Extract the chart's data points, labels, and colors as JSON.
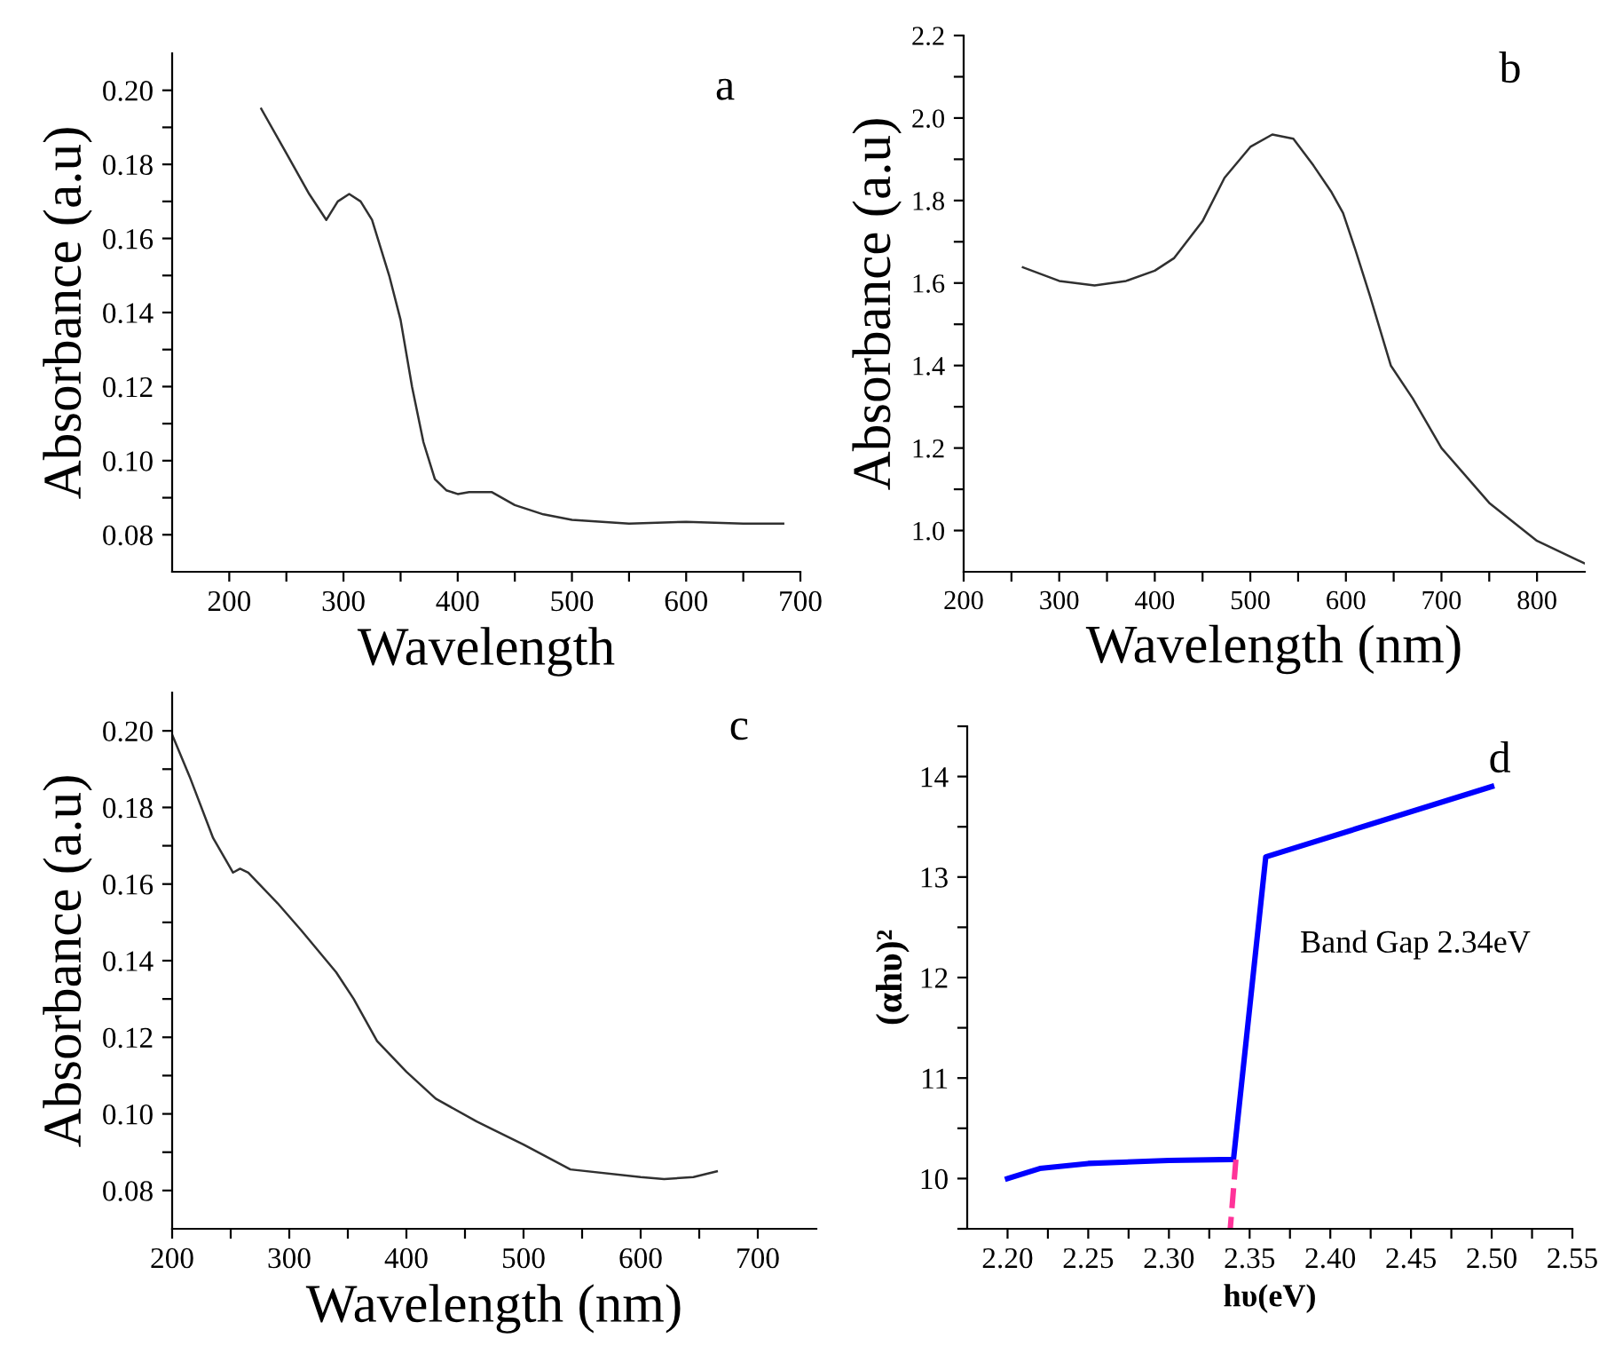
{
  "chart_data": [
    {
      "type": "line",
      "title": "a",
      "xlabel": "Wavelength",
      "ylabel": "Absorbance (a.u)",
      "xlim": [
        150,
        700
      ],
      "ylim": [
        0.07,
        0.21
      ],
      "grid": false,
      "legend": false,
      "xticks": [
        200,
        {
          "value": 250,
          "label": null
        },
        300,
        {
          "value": 350,
          "label": null
        },
        400,
        {
          "value": 450,
          "label": null
        },
        500,
        {
          "value": 550,
          "label": null
        },
        600,
        {
          "value": 650,
          "label": null
        },
        700
      ],
      "yticks": [
        {
          "value": 0.08,
          "label": "0.08"
        },
        {
          "value": 0.09,
          "label": null
        },
        {
          "value": 0.1,
          "label": "0.10"
        },
        {
          "value": 0.11,
          "label": null
        },
        {
          "value": 0.12,
          "label": "0.12"
        },
        {
          "value": 0.13,
          "label": null
        },
        {
          "value": 0.14,
          "label": "0.14"
        },
        {
          "value": 0.15,
          "label": null
        },
        {
          "value": 0.16,
          "label": "0.16"
        },
        {
          "value": 0.17,
          "label": null
        },
        {
          "value": 0.18,
          "label": "0.18"
        },
        {
          "value": 0.19,
          "label": null
        },
        {
          "value": 0.2,
          "label": "0.20"
        }
      ],
      "series": [
        {
          "color": "#303030",
          "x": [
            228,
            250,
            270,
            285,
            295,
            305,
            315,
            325,
            340,
            350,
            360,
            370,
            380,
            390,
            400,
            410,
            430,
            450,
            475,
            500,
            550,
            600,
            650,
            685
          ],
          "values": [
            0.195,
            0.183,
            0.172,
            0.165,
            0.17,
            0.172,
            0.17,
            0.165,
            0.15,
            0.138,
            0.12,
            0.105,
            0.095,
            0.092,
            0.091,
            0.0915,
            0.0915,
            0.088,
            0.0855,
            0.084,
            0.083,
            0.0835,
            0.083,
            0.083
          ]
        }
      ]
    },
    {
      "type": "line",
      "title": "b",
      "xlabel": "Wavelength (nm)",
      "ylabel": "Absorbance (a.u)",
      "xlim": [
        200,
        850
      ],
      "ylim": [
        0.9,
        2.2
      ],
      "grid": false,
      "legend": false,
      "xticks": [
        200,
        {
          "value": 250,
          "label": null
        },
        300,
        {
          "value": 350,
          "label": null
        },
        400,
        {
          "value": 450,
          "label": null
        },
        500,
        {
          "value": 550,
          "label": null
        },
        600,
        {
          "value": 650,
          "label": null
        },
        700,
        {
          "value": 750,
          "label": null
        },
        800
      ],
      "yticks": [
        {
          "value": 1.0,
          "label": "1.0"
        },
        {
          "value": 1.1,
          "label": null
        },
        1.2,
        {
          "value": 1.3,
          "label": null
        },
        1.4,
        {
          "value": 1.5,
          "label": null
        },
        1.6,
        {
          "value": 1.7,
          "label": null
        },
        1.8,
        {
          "value": 1.9,
          "label": null
        },
        {
          "value": 2.0,
          "label": "2.0"
        },
        {
          "value": 2.1,
          "label": null
        },
        2.2
      ],
      "series": [
        {
          "color": "#303030",
          "x": [
            262,
            300,
            337,
            370,
            400,
            420,
            450,
            473,
            500,
            523,
            545,
            566,
            585,
            597,
            610,
            625,
            647,
            670,
            700,
            750,
            800,
            850
          ],
          "values": [
            1.638,
            1.605,
            1.594,
            1.605,
            1.63,
            1.66,
            1.75,
            1.855,
            1.93,
            1.96,
            1.95,
            1.885,
            1.82,
            1.77,
            1.68,
            1.57,
            1.4,
            1.32,
            1.2,
            1.067,
            0.975,
            0.92
          ]
        }
      ]
    },
    {
      "type": "line",
      "title": "c",
      "xlabel": "Wavelength (nm)",
      "ylabel": "Absorbance (a.u)",
      "xlim": [
        200,
        750
      ],
      "ylim": [
        0.07,
        0.21
      ],
      "grid": false,
      "legend": false,
      "xticks": [
        200,
        {
          "value": 250,
          "label": null
        },
        300,
        {
          "value": 350,
          "label": null
        },
        400,
        {
          "value": 450,
          "label": null
        },
        500,
        {
          "value": 550,
          "label": null
        },
        600,
        {
          "value": 650,
          "label": null
        },
        700
      ],
      "yticks": [
        {
          "value": 0.08,
          "label": "0.08"
        },
        {
          "value": 0.09,
          "label": null
        },
        {
          "value": 0.1,
          "label": "0.10"
        },
        {
          "value": 0.11,
          "label": null
        },
        {
          "value": 0.12,
          "label": "0.12"
        },
        {
          "value": 0.13,
          "label": null
        },
        {
          "value": 0.14,
          "label": "0.14"
        },
        {
          "value": 0.15,
          "label": null
        },
        {
          "value": 0.16,
          "label": "0.16"
        },
        {
          "value": 0.17,
          "label": null
        },
        {
          "value": 0.18,
          "label": "0.18"
        },
        {
          "value": 0.19,
          "label": null
        },
        {
          "value": 0.2,
          "label": "0.20"
        }
      ],
      "series": [
        {
          "color": "#303030",
          "x": [
            200,
            215,
            235,
            252,
            258,
            265,
            290,
            310,
            340,
            355,
            375,
            400,
            425,
            460,
            500,
            540,
            600,
            620,
            645,
            665
          ],
          "values": [
            0.199,
            0.188,
            0.172,
            0.163,
            0.164,
            0.163,
            0.155,
            0.148,
            0.137,
            0.13,
            0.119,
            0.111,
            0.104,
            0.098,
            0.092,
            0.0855,
            0.0835,
            0.083,
            0.0835,
            0.085
          ]
        }
      ]
    },
    {
      "type": "line",
      "title": "d",
      "xlabel": "hυ(eV)",
      "ylabel": "(αhυ)²",
      "xlim": [
        2.175,
        2.55
      ],
      "ylim": [
        9.5,
        14.5
      ],
      "grid": false,
      "legend": false,
      "annotations": [
        "Band Gap 2.34eV"
      ],
      "xticks": [
        {
          "value": 2.2,
          "label": "2.20"
        },
        {
          "value": 2.225,
          "label": null
        },
        {
          "value": 2.25,
          "label": "2.25"
        },
        {
          "value": 2.275,
          "label": null
        },
        {
          "value": 2.3,
          "label": "2.30"
        },
        {
          "value": 2.325,
          "label": null
        },
        {
          "value": 2.35,
          "label": "2.35"
        },
        {
          "value": 2.375,
          "label": null
        },
        {
          "value": 2.4,
          "label": "2.40"
        },
        {
          "value": 2.425,
          "label": null
        },
        {
          "value": 2.45,
          "label": "2.45"
        },
        {
          "value": 2.475,
          "label": null
        },
        {
          "value": 2.5,
          "label": "2.50"
        },
        {
          "value": 2.525,
          "label": null
        },
        {
          "value": 2.55,
          "label": "2.55"
        }
      ],
      "yticks": [
        {
          "value": 9.5,
          "label": null
        },
        10,
        {
          "value": 10.5,
          "label": null
        },
        11,
        {
          "value": 11.5,
          "label": null
        },
        12,
        {
          "value": 12.5,
          "label": null
        },
        13,
        {
          "value": 13.5,
          "label": null
        },
        14,
        {
          "value": 14.5,
          "label": null
        }
      ],
      "series": [
        {
          "color": "#0000ff",
          "line_style": "solid",
          "x": [
            2.2,
            2.22,
            2.25,
            2.3,
            2.34,
            2.36,
            2.5
          ],
          "values": [
            10.0,
            10.1,
            10.15,
            10.18,
            10.19,
            13.2,
            13.9
          ]
        },
        {
          "color": "#ff3399",
          "line_style": "dashed",
          "x": [
            2.3415,
            2.338
          ],
          "values": [
            10.19,
            9.5
          ]
        }
      ]
    }
  ]
}
